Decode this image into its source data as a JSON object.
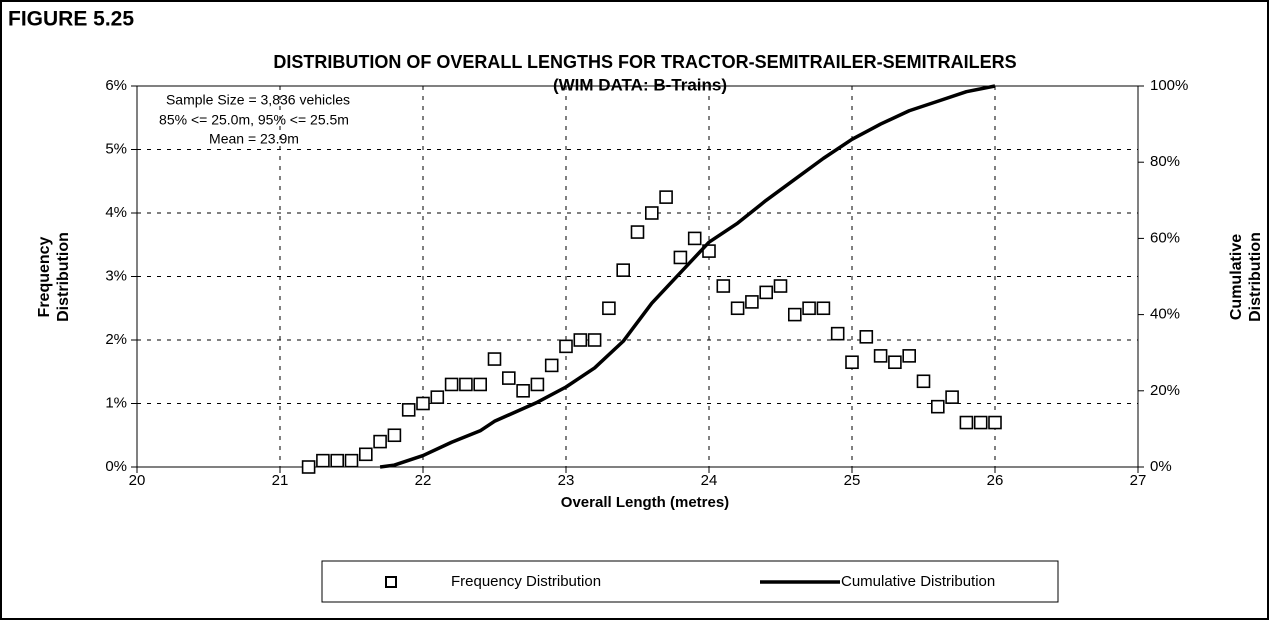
{
  "figure_label": "FIGURE 5.25",
  "chart_data": {
    "type": "scatter",
    "title": "DISTRIBUTION OF OVERALL LENGTHS FOR TRACTOR-SEMITRAILER-SEMITRAILERS",
    "subtitle": "(WIM DATA: B-Trains)",
    "x_label": "Overall Length (metres)",
    "y_label": [
      "Frequency",
      "Distribution"
    ],
    "y2_label": [
      "Cumulative",
      "Distribution"
    ],
    "annotations": [
      "Sample Size = 3,836 vehicles",
      "85% <= 25.0m, 95% <= 25.5m",
      "Mean = 23.9m"
    ],
    "xlim": [
      20,
      27
    ],
    "xticks": [
      20,
      21,
      22,
      23,
      24,
      25,
      26,
      27
    ],
    "ylim": [
      0,
      6
    ],
    "yticks": [
      {
        "value": 0,
        "label": "0%"
      },
      {
        "value": 1,
        "label": "1%"
      },
      {
        "value": 2,
        "label": "2%"
      },
      {
        "value": 3,
        "label": "3%"
      },
      {
        "value": 4,
        "label": "4%"
      },
      {
        "value": 5,
        "label": "5%"
      },
      {
        "value": 6,
        "label": "6%"
      }
    ],
    "y2lim": [
      0,
      100
    ],
    "y2ticks": [
      {
        "value": 0,
        "label": "0%"
      },
      {
        "value": 20,
        "label": "20%"
      },
      {
        "value": 40,
        "label": "40%"
      },
      {
        "value": 60,
        "label": "60%"
      },
      {
        "value": 80,
        "label": "80%"
      },
      {
        "value": 100,
        "label": "100%"
      }
    ],
    "grid": true,
    "legend": "bottom",
    "series": [
      {
        "name": "Frequency Distribution",
        "type": "scatter",
        "color": "#000000",
        "x": [
          21.2,
          21.3,
          21.4,
          21.5,
          21.6,
          21.7,
          21.8,
          21.9,
          22.0,
          22.1,
          22.2,
          22.3,
          22.4,
          22.5,
          22.6,
          22.7,
          22.8,
          22.9,
          23.0,
          23.1,
          23.2,
          23.3,
          23.4,
          23.5,
          23.6,
          23.7,
          23.8,
          23.9,
          24.0,
          24.1,
          24.2,
          24.3,
          24.4,
          24.5,
          24.6,
          24.7,
          24.8,
          24.9,
          25.0,
          25.1,
          25.2,
          25.3,
          25.4,
          25.5,
          25.6,
          25.7,
          25.8,
          25.9,
          26.0
        ],
        "values": [
          0.0,
          0.1,
          0.1,
          0.1,
          0.2,
          0.4,
          0.5,
          0.9,
          1.0,
          1.1,
          1.3,
          1.3,
          1.3,
          1.7,
          1.4,
          1.2,
          1.3,
          1.6,
          1.9,
          2.0,
          2.0,
          2.5,
          3.1,
          3.7,
          4.0,
          4.25,
          3.3,
          3.6,
          3.4,
          2.85,
          2.5,
          2.6,
          2.75,
          2.85,
          2.4,
          2.5,
          2.5,
          2.1,
          1.65,
          2.05,
          1.75,
          1.65,
          1.75,
          1.35,
          0.95,
          1.1,
          0.7,
          0.7,
          0.7
        ]
      },
      {
        "name": "Cumulative Distribution",
        "type": "line",
        "axis": "y2",
        "color": "#000000",
        "x": [
          21.7,
          21.8,
          22.0,
          22.2,
          22.4,
          22.5,
          22.8,
          23.0,
          23.2,
          23.4,
          23.6,
          23.8,
          24.0,
          24.2,
          24.4,
          24.6,
          24.8,
          25.0,
          25.2,
          25.4,
          25.6,
          25.8,
          26.0
        ],
        "values": [
          0,
          0.5,
          3,
          6.5,
          9.5,
          12,
          17,
          21,
          26,
          33,
          43,
          51,
          59,
          64,
          70,
          75.5,
          81,
          86,
          90,
          93.5,
          96,
          98.5,
          100
        ]
      }
    ]
  }
}
